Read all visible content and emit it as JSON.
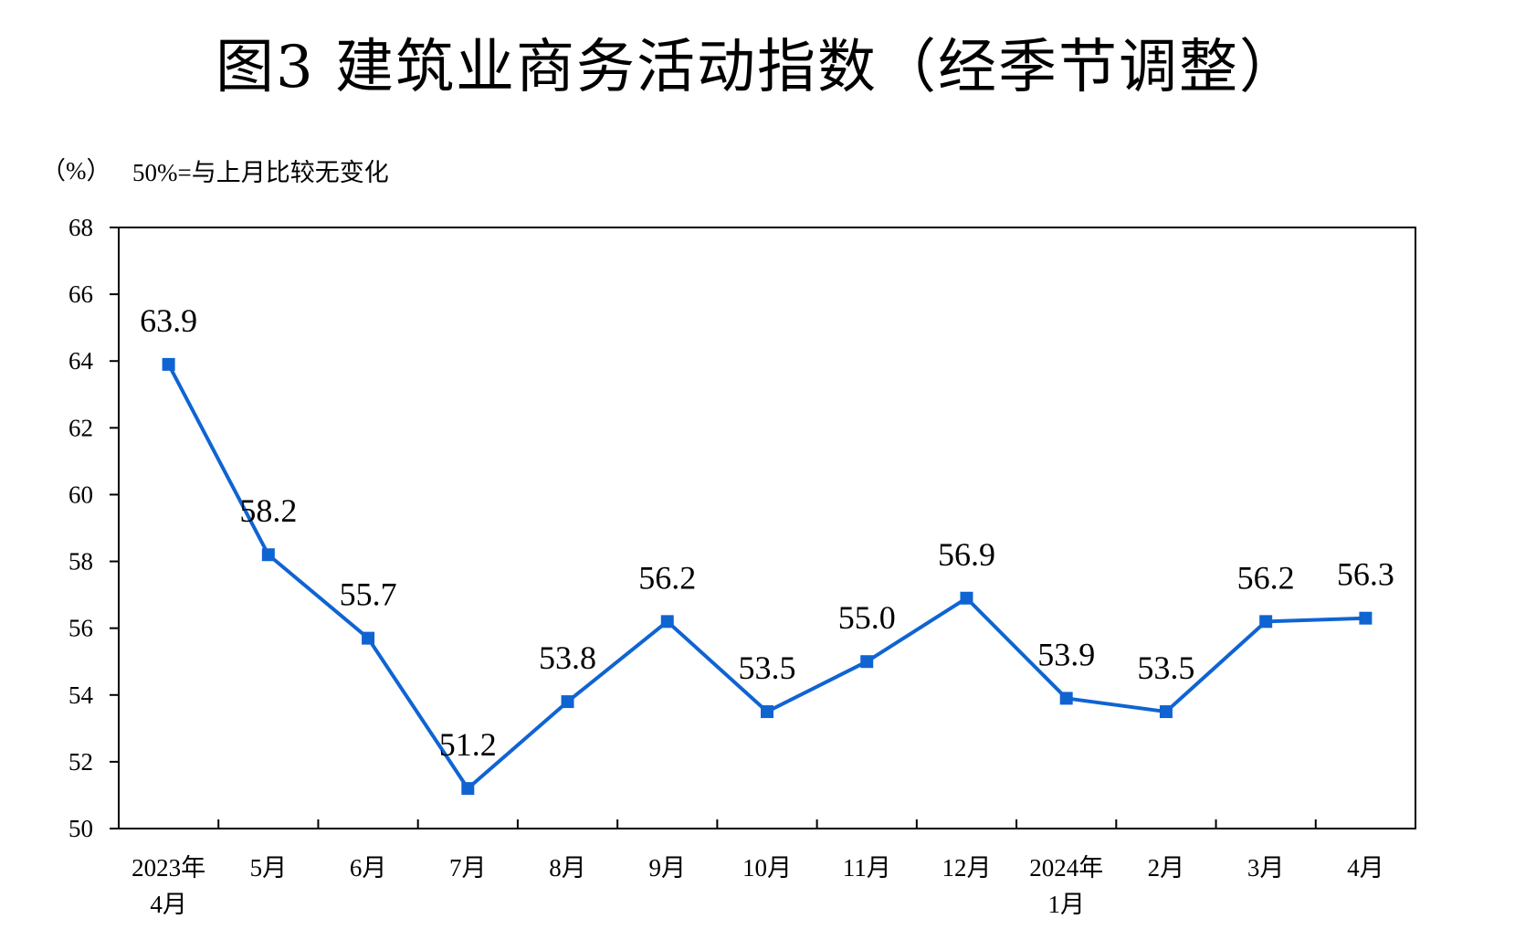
{
  "chart_data": {
    "type": "line",
    "title": "图3  建筑业商务活动指数（经季节调整）",
    "y_unit_label": "（%）",
    "annotation": "50%=与上月比较无变化",
    "ylim": [
      50,
      68
    ],
    "y_ticks": [
      "50",
      "52",
      "54",
      "56",
      "58",
      "60",
      "62",
      "64",
      "66",
      "68"
    ],
    "categories": [
      [
        "2023年",
        "4月"
      ],
      [
        "5月"
      ],
      [
        "6月"
      ],
      [
        "7月"
      ],
      [
        "8月"
      ],
      [
        "9月"
      ],
      [
        "10月"
      ],
      [
        "11月"
      ],
      [
        "12月"
      ],
      [
        "2024年",
        "1月"
      ],
      [
        "2月"
      ],
      [
        "3月"
      ],
      [
        "4月"
      ]
    ],
    "series": [
      {
        "values": [
          63.9,
          58.2,
          55.7,
          51.2,
          53.8,
          56.2,
          53.5,
          55.0,
          56.9,
          53.9,
          53.5,
          56.2,
          56.3
        ],
        "labels": [
          "63.9",
          "58.2",
          "55.7",
          "51.2",
          "53.8",
          "56.2",
          "53.5",
          "55.0",
          "56.9",
          "53.9",
          "53.5",
          "56.2",
          "56.3"
        ],
        "color": "#0f64d2"
      }
    ],
    "grid": false,
    "legend": "none"
  }
}
